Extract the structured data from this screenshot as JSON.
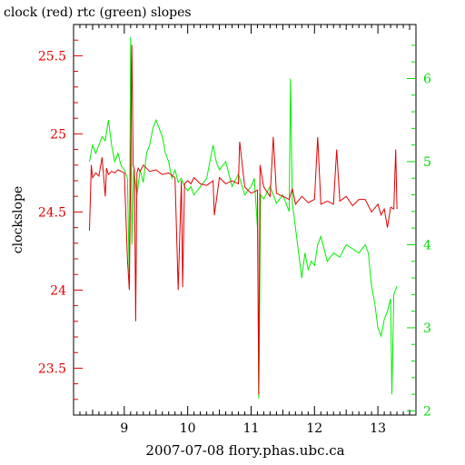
{
  "title": "clock (red) rtc (green) slopes",
  "footer": "2007-07-08 flory.phas.ubc.ca",
  "colors": {
    "red_series": "#e00000",
    "green_series": "#00ee00",
    "axis": "#000000"
  },
  "chart_data": {
    "type": "line",
    "title": "clock (red) rtc (green) slopes",
    "xlabel": "2007-07-08 flory.phas.ubc.ca",
    "ylabel": "clockslope",
    "xlim": [
      8.2,
      13.6
    ],
    "ylim_left": [
      23.2,
      25.7
    ],
    "ylim_right": [
      1.95,
      6.65
    ],
    "x_ticks": [
      "9",
      "10",
      "11",
      "12",
      "13"
    ],
    "y_ticks_left": [
      "25.5",
      "25",
      "24.5",
      "24",
      "23.5"
    ],
    "y_ticks_right": [
      "6",
      "5",
      "4",
      "3",
      "2"
    ],
    "grid": false,
    "series": [
      {
        "name": "clock",
        "axis": "left",
        "color": "#e00000",
        "x": [
          8.45,
          8.48,
          8.5,
          8.55,
          8.6,
          8.65,
          8.7,
          8.72,
          8.75,
          8.8,
          8.85,
          8.9,
          8.95,
          9.0,
          9.05,
          9.08,
          9.1,
          9.12,
          9.14,
          9.16,
          9.18,
          9.2,
          9.22,
          9.25,
          9.3,
          9.35,
          9.4,
          9.5,
          9.6,
          9.7,
          9.8,
          9.85,
          9.9,
          9.92,
          9.95,
          10.0,
          10.05,
          10.1,
          10.2,
          10.3,
          10.4,
          10.42,
          10.5,
          10.6,
          10.7,
          10.8,
          10.82,
          10.9,
          11.0,
          11.1,
          11.12,
          11.14,
          11.2,
          11.3,
          11.35,
          11.4,
          11.5,
          11.6,
          11.65,
          11.7,
          11.8,
          11.9,
          12.0,
          12.05,
          12.1,
          12.2,
          12.3,
          12.35,
          12.4,
          12.5,
          12.6,
          12.7,
          12.8,
          12.9,
          13.0,
          13.05,
          13.1,
          13.15,
          13.2,
          13.25,
          13.28,
          13.3
        ],
        "y": [
          24.38,
          24.8,
          24.72,
          24.75,
          24.73,
          24.85,
          24.6,
          24.78,
          24.74,
          24.76,
          24.75,
          24.77,
          24.76,
          24.75,
          24.2,
          24.0,
          24.75,
          25.57,
          24.8,
          24.77,
          23.8,
          24.75,
          24.78,
          24.76,
          24.8,
          24.78,
          24.76,
          24.77,
          24.74,
          24.75,
          24.72,
          24.0,
          24.7,
          24.02,
          24.68,
          24.7,
          24.68,
          24.72,
          24.68,
          24.67,
          24.7,
          24.48,
          24.72,
          24.68,
          24.7,
          24.68,
          24.95,
          24.66,
          24.62,
          24.64,
          23.33,
          24.8,
          24.66,
          24.6,
          24.98,
          24.62,
          24.6,
          24.58,
          24.65,
          24.55,
          24.6,
          24.56,
          24.58,
          24.98,
          24.55,
          24.57,
          24.55,
          24.9,
          24.57,
          24.6,
          24.54,
          24.58,
          24.58,
          24.5,
          24.55,
          24.48,
          24.52,
          24.4,
          24.53,
          24.52,
          24.9,
          24.52
        ]
      },
      {
        "name": "rtc",
        "axis": "right",
        "color": "#00ee00",
        "x": [
          8.45,
          8.5,
          8.55,
          8.6,
          8.65,
          8.7,
          8.75,
          8.8,
          8.85,
          8.9,
          8.95,
          9.0,
          9.05,
          9.08,
          9.1,
          9.12,
          9.15,
          9.2,
          9.25,
          9.3,
          9.35,
          9.4,
          9.45,
          9.5,
          9.55,
          9.6,
          9.65,
          9.7,
          9.75,
          9.8,
          9.85,
          9.9,
          9.95,
          10.0,
          10.05,
          10.1,
          10.15,
          10.2,
          10.3,
          10.4,
          10.45,
          10.5,
          10.6,
          10.7,
          10.8,
          10.9,
          11.0,
          11.05,
          11.1,
          11.12,
          11.15,
          11.2,
          11.3,
          11.4,
          11.5,
          11.6,
          11.62,
          11.65,
          11.7,
          11.75,
          11.8,
          11.85,
          11.9,
          11.95,
          12.0,
          12.05,
          12.1,
          12.2,
          12.3,
          12.4,
          12.5,
          12.6,
          12.7,
          12.8,
          12.85,
          12.9,
          12.95,
          13.0,
          13.05,
          13.1,
          13.15,
          13.2,
          13.22,
          13.25,
          13.3
        ],
        "y": [
          5.0,
          5.2,
          5.1,
          5.2,
          5.3,
          5.25,
          5.5,
          5.2,
          5.0,
          5.1,
          4.95,
          4.9,
          4.8,
          3.6,
          6.5,
          4.0,
          4.9,
          4.6,
          4.9,
          4.75,
          5.1,
          5.2,
          5.4,
          5.5,
          5.4,
          5.3,
          5.1,
          5.0,
          4.8,
          4.9,
          4.75,
          4.8,
          4.7,
          4.65,
          4.7,
          4.6,
          4.65,
          4.7,
          4.8,
          5.2,
          5.0,
          4.9,
          5.0,
          4.7,
          4.85,
          4.6,
          4.7,
          4.8,
          4.2,
          2.15,
          4.6,
          4.55,
          4.7,
          4.5,
          4.6,
          4.4,
          6.0,
          4.5,
          4.2,
          3.9,
          3.6,
          3.9,
          3.7,
          3.8,
          3.75,
          4.0,
          4.1,
          3.8,
          3.9,
          3.85,
          4.0,
          3.95,
          3.9,
          4.0,
          3.9,
          3.5,
          3.3,
          3.0,
          2.9,
          3.1,
          3.2,
          3.35,
          2.2,
          3.4,
          3.5
        ]
      }
    ]
  }
}
